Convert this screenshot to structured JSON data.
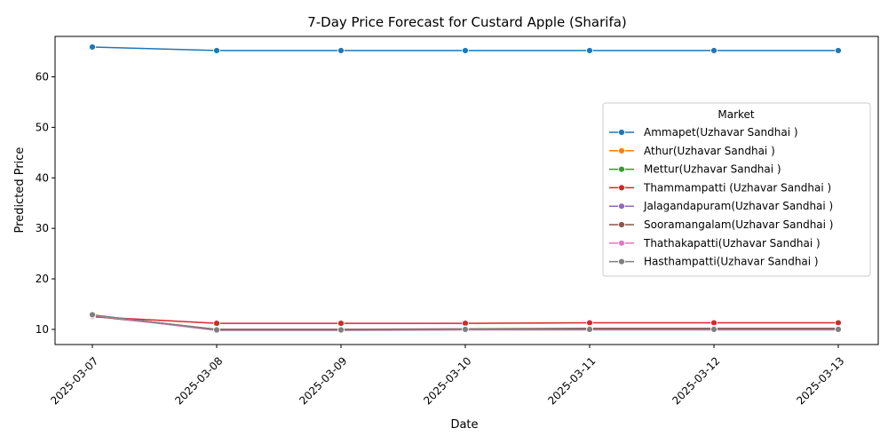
{
  "chart_data": {
    "type": "line",
    "title": "7-Day Price Forecast for Custard Apple (Sharifa)",
    "xlabel": "Date",
    "ylabel": "Predicted Price",
    "x": [
      "2025-03-07",
      "2025-03-08",
      "2025-03-09",
      "2025-03-10",
      "2025-03-11",
      "2025-03-12",
      "2025-03-13"
    ],
    "ylim": [
      7,
      68
    ],
    "yticks": [
      10,
      20,
      30,
      40,
      50,
      60
    ],
    "grid": false,
    "legend": {
      "title": "Market",
      "position": "center-right"
    },
    "series": [
      {
        "name": "Ammapet(Uzhavar Sandhai )",
        "color": "#1f77b4",
        "values": [
          65.9,
          65.2,
          65.2,
          65.2,
          65.2,
          65.2,
          65.2
        ]
      },
      {
        "name": "Athur(Uzhavar Sandhai )",
        "color": "#ff7f0e",
        "values": [
          12.8,
          10.0,
          10.0,
          10.0,
          10.1,
          10.1,
          10.1
        ]
      },
      {
        "name": "Mettur(Uzhavar Sandhai )",
        "color": "#2ca02c",
        "values": [
          12.8,
          10.0,
          10.0,
          10.0,
          10.1,
          10.1,
          10.1
        ]
      },
      {
        "name": "Thammampatti (Uzhavar Sandhai )",
        "color": "#d62728",
        "values": [
          12.5,
          11.2,
          11.2,
          11.2,
          11.3,
          11.3,
          11.3
        ]
      },
      {
        "name": "Jalagandapuram(Uzhavar Sandhai )",
        "color": "#9467bd",
        "values": [
          12.8,
          10.0,
          10.0,
          10.0,
          10.1,
          10.1,
          10.1
        ]
      },
      {
        "name": "Sooramangalam(Uzhavar Sandhai )",
        "color": "#8c564b",
        "values": [
          12.6,
          10.0,
          10.0,
          10.1,
          10.2,
          10.2,
          10.2
        ]
      },
      {
        "name": "Thathakapatti(Uzhavar Sandhai )",
        "color": "#e377c2",
        "values": [
          12.8,
          9.8,
          9.8,
          9.9,
          9.9,
          9.9,
          9.9
        ]
      },
      {
        "name": "Hasthampatti(Uzhavar Sandhai )",
        "color": "#7f7f7f",
        "values": [
          12.9,
          9.9,
          9.9,
          10.0,
          10.0,
          10.0,
          10.0
        ]
      }
    ]
  }
}
